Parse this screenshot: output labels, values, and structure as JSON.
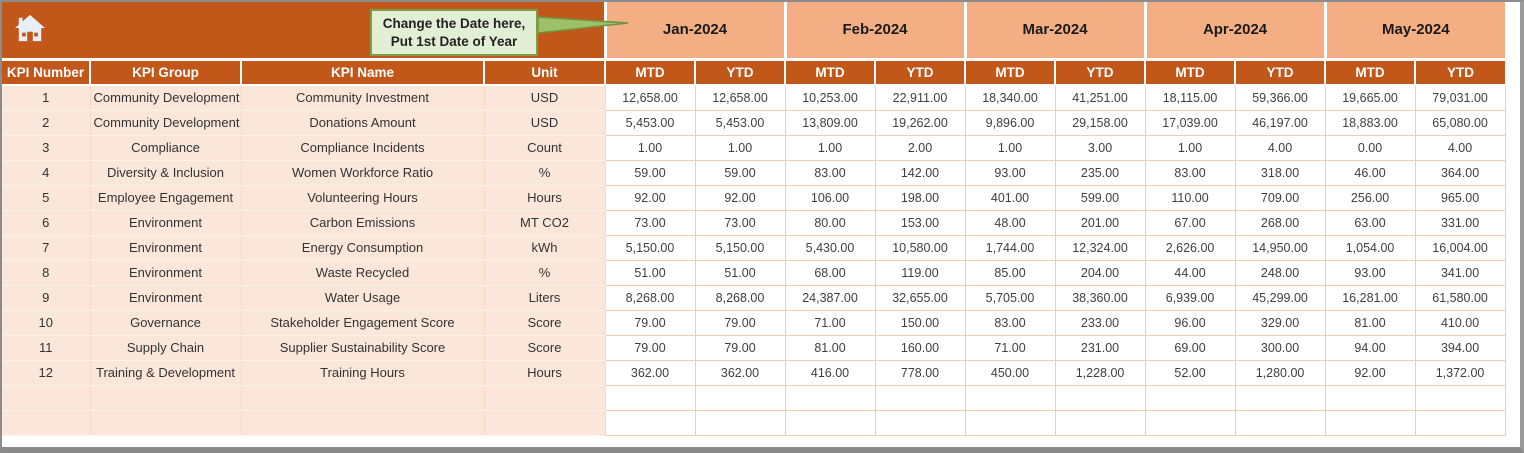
{
  "banner": {
    "icon": "home"
  },
  "callout": {
    "line1": "Change the Date here,",
    "line2": "Put 1st Date of Year"
  },
  "table": {
    "column_headers": {
      "kpi_number": "KPI Number",
      "kpi_group": "KPI Group",
      "kpi_name": "KPI Name",
      "unit": "Unit"
    },
    "period_headers": {
      "mtd": "MTD",
      "ytd": "YTD"
    },
    "months": [
      "Jan-2024",
      "Feb-2024",
      "Mar-2024",
      "Apr-2024",
      "May-2024"
    ],
    "rows": [
      {
        "number": "1",
        "group": "Community Development",
        "name": "Community Investment",
        "unit": "USD",
        "values": [
          "12,658.00",
          "12,658.00",
          "10,253.00",
          "22,911.00",
          "18,340.00",
          "41,251.00",
          "18,115.00",
          "59,366.00",
          "19,665.00",
          "79,031.00"
        ]
      },
      {
        "number": "2",
        "group": "Community Development",
        "name": "Donations Amount",
        "unit": "USD",
        "values": [
          "5,453.00",
          "5,453.00",
          "13,809.00",
          "19,262.00",
          "9,896.00",
          "29,158.00",
          "17,039.00",
          "46,197.00",
          "18,883.00",
          "65,080.00"
        ]
      },
      {
        "number": "3",
        "group": "Compliance",
        "name": "Compliance Incidents",
        "unit": "Count",
        "values": [
          "1.00",
          "1.00",
          "1.00",
          "2.00",
          "1.00",
          "3.00",
          "1.00",
          "4.00",
          "0.00",
          "4.00"
        ]
      },
      {
        "number": "4",
        "group": "Diversity & Inclusion",
        "name": "Women Workforce Ratio",
        "unit": "%",
        "values": [
          "59.00",
          "59.00",
          "83.00",
          "142.00",
          "93.00",
          "235.00",
          "83.00",
          "318.00",
          "46.00",
          "364.00"
        ]
      },
      {
        "number": "5",
        "group": "Employee Engagement",
        "name": "Volunteering Hours",
        "unit": "Hours",
        "values": [
          "92.00",
          "92.00",
          "106.00",
          "198.00",
          "401.00",
          "599.00",
          "110.00",
          "709.00",
          "256.00",
          "965.00"
        ]
      },
      {
        "number": "6",
        "group": "Environment",
        "name": "Carbon Emissions",
        "unit": "MT CO2",
        "values": [
          "73.00",
          "73.00",
          "80.00",
          "153.00",
          "48.00",
          "201.00",
          "67.00",
          "268.00",
          "63.00",
          "331.00"
        ]
      },
      {
        "number": "7",
        "group": "Environment",
        "name": "Energy Consumption",
        "unit": "kWh",
        "values": [
          "5,150.00",
          "5,150.00",
          "5,430.00",
          "10,580.00",
          "1,744.00",
          "12,324.00",
          "2,626.00",
          "14,950.00",
          "1,054.00",
          "16,004.00"
        ]
      },
      {
        "number": "8",
        "group": "Environment",
        "name": "Waste Recycled",
        "unit": "%",
        "values": [
          "51.00",
          "51.00",
          "68.00",
          "119.00",
          "85.00",
          "204.00",
          "44.00",
          "248.00",
          "93.00",
          "341.00"
        ]
      },
      {
        "number": "9",
        "group": "Environment",
        "name": "Water Usage",
        "unit": "Liters",
        "values": [
          "8,268.00",
          "8,268.00",
          "24,387.00",
          "32,655.00",
          "5,705.00",
          "38,360.00",
          "6,939.00",
          "45,299.00",
          "16,281.00",
          "61,580.00"
        ]
      },
      {
        "number": "10",
        "group": "Governance",
        "name": "Stakeholder Engagement Score",
        "unit": "Score",
        "values": [
          "79.00",
          "79.00",
          "71.00",
          "150.00",
          "83.00",
          "233.00",
          "96.00",
          "329.00",
          "81.00",
          "410.00"
        ]
      },
      {
        "number": "11",
        "group": "Supply Chain",
        "name": "Supplier Sustainability Score",
        "unit": "Score",
        "values": [
          "79.00",
          "79.00",
          "81.00",
          "160.00",
          "71.00",
          "231.00",
          "69.00",
          "300.00",
          "94.00",
          "394.00"
        ]
      },
      {
        "number": "12",
        "group": "Training & Development",
        "name": "Training Hours",
        "unit": "Hours",
        "values": [
          "362.00",
          "362.00",
          "416.00",
          "778.00",
          "450.00",
          "1,228.00",
          "52.00",
          "1,280.00",
          "92.00",
          "1,372.00"
        ]
      }
    ],
    "empty_row_count": 2
  },
  "colors": {
    "rust": "#C2571A",
    "salmon": "#F3AE83",
    "peach": "#FBE6DA",
    "grid_line": "#F3CDB2",
    "callout_bg": "#E2EFD4",
    "callout_border": "#7F9C49",
    "header_text": "#FFFFFF",
    "data_text": "#3F3F3F"
  }
}
